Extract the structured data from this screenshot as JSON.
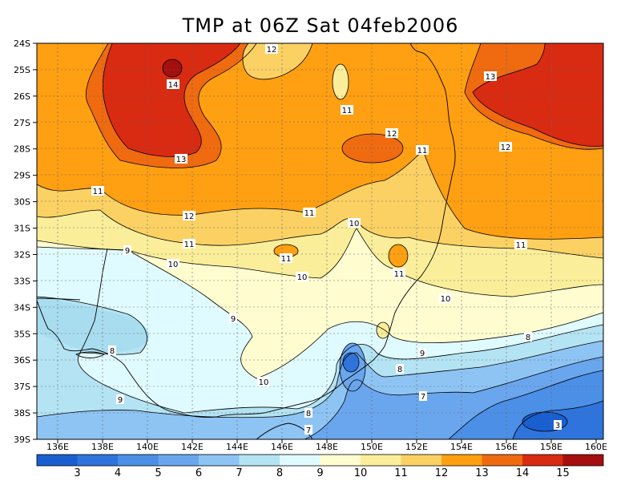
{
  "title": "TMP at 06Z Sat 04feb2006",
  "lat_labels": [
    "24S",
    "25S",
    "26S",
    "27S",
    "28S",
    "29S",
    "30S",
    "31S",
    "32S",
    "33S",
    "34S",
    "35S",
    "36S",
    "37S",
    "38S",
    "39S"
  ],
  "lon_labels": [
    "136E",
    "138E",
    "140E",
    "142E",
    "144E",
    "146E",
    "148E",
    "150E",
    "152E",
    "154E",
    "156E",
    "158E",
    "160E"
  ],
  "legend": {
    "ticks": [
      "3",
      "4",
      "5",
      "6",
      "7",
      "8",
      "9",
      "10",
      "11",
      "12",
      "13",
      "14",
      "15"
    ],
    "colors": [
      "#1a5fd0",
      "#2f74dc",
      "#4b8fe6",
      "#6aa6ee",
      "#8ec4f4",
      "#b4e3f3",
      "#e0fbff",
      "#fffdd0",
      "#fbee9a",
      "#fbd164",
      "#ff9f12",
      "#f06a10",
      "#d92a12",
      "#a50f0f"
    ]
  },
  "contour_labels": [
    {
      "text": "12"
    },
    {
      "text": "14"
    },
    {
      "text": "13"
    },
    {
      "text": "13"
    },
    {
      "text": "11"
    },
    {
      "text": "12"
    },
    {
      "text": "11"
    },
    {
      "text": "12"
    },
    {
      "text": "12"
    },
    {
      "text": "11"
    },
    {
      "text": "11"
    },
    {
      "text": "10"
    },
    {
      "text": "11"
    },
    {
      "text": "9"
    },
    {
      "text": "11"
    },
    {
      "text": "10"
    },
    {
      "text": "10"
    },
    {
      "text": "11"
    },
    {
      "text": "11"
    },
    {
      "text": "10"
    },
    {
      "text": "9"
    },
    {
      "text": "10"
    },
    {
      "text": "8"
    },
    {
      "text": "9"
    },
    {
      "text": "8"
    },
    {
      "text": "8"
    },
    {
      "text": "9"
    },
    {
      "text": "7"
    },
    {
      "text": "8"
    },
    {
      "text": "7"
    },
    {
      "text": "3"
    }
  ]
}
